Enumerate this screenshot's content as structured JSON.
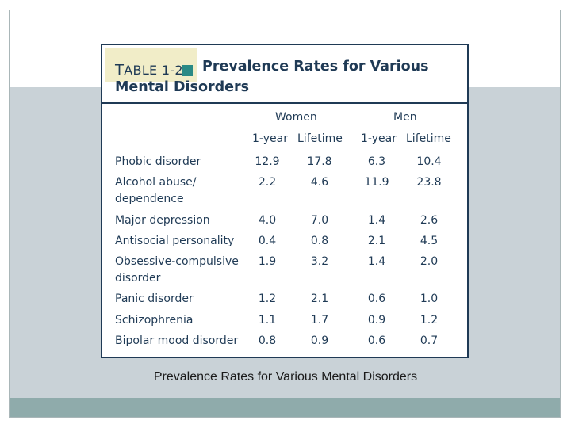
{
  "table": {
    "label_prefix": "T",
    "label_rest": "ABLE 1-2",
    "title_line1": "Prevalence Rates for Various",
    "title_line2": "Mental Disorders",
    "groups": [
      "Women",
      "Men"
    ],
    "columns": [
      "1-year",
      "Lifetime",
      "1-year",
      "Lifetime"
    ],
    "rows": [
      {
        "label": [
          "Phobic disorder"
        ],
        "values": [
          "12.9",
          "17.8",
          "6.3",
          "10.4"
        ]
      },
      {
        "label": [
          "Alcohol abuse/",
          "dependence"
        ],
        "values": [
          "2.2",
          "4.6",
          "11.9",
          "23.8"
        ]
      },
      {
        "label": [
          "Major depression"
        ],
        "values": [
          "4.0",
          "7.0",
          "1.4",
          "2.6"
        ]
      },
      {
        "label": [
          "Antisocial personality"
        ],
        "values": [
          "0.4",
          "0.8",
          "2.1",
          "4.5"
        ]
      },
      {
        "label": [
          "Obsessive-compulsive",
          "disorder"
        ],
        "values": [
          "1.9",
          "3.2",
          "1.4",
          "2.0"
        ]
      },
      {
        "label": [
          "Panic disorder"
        ],
        "values": [
          "1.2",
          "2.1",
          "0.6",
          "1.0"
        ]
      },
      {
        "label": [
          "Schizophrenia"
        ],
        "values": [
          "1.1",
          "1.7",
          "0.9",
          "1.2"
        ]
      },
      {
        "label": [
          "Bipolar mood disorder"
        ],
        "values": [
          "0.8",
          "0.9",
          "0.6",
          "0.7"
        ]
      }
    ]
  },
  "caption": "Prevalence Rates for Various Mental Disorders",
  "colors": {
    "text": "#1f3a55",
    "accent_square": "#2a8a85",
    "title_highlight": "#f1edc8",
    "band": "#c9d2d7",
    "footer_bar": "#8fabab"
  }
}
